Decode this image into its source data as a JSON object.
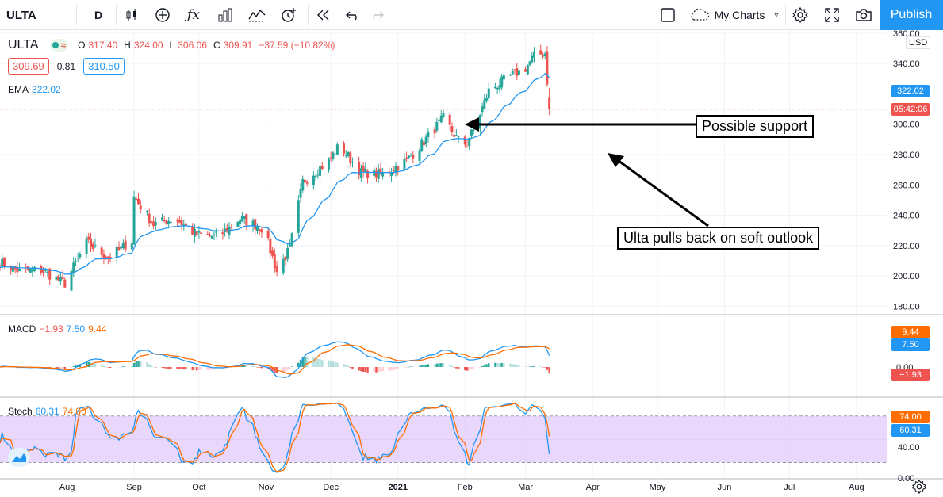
{
  "toolbar": {
    "symbol": "ULTA",
    "interval": "D",
    "my_charts": "My Charts",
    "publish": "Publish",
    "icons": [
      "search-icon",
      "candles-icon",
      "add-indicator-icon",
      "fx-icon",
      "bar-chart-icon",
      "compare-icon",
      "alert-icon",
      "replay-icon",
      "undo-icon",
      "redo-icon",
      "layout-icon",
      "cloud-icon",
      "gear-icon",
      "fullscreen-icon",
      "camera-icon"
    ]
  },
  "legend": {
    "symbol": "ULTA",
    "open_label": "O",
    "open": "317.40",
    "high_label": "H",
    "high": "324.00",
    "low_label": "L",
    "low": "306.06",
    "close_label": "C",
    "close": "309.91",
    "change": "−37.59 (−10.82%)",
    "bid": "309.69",
    "spread": "0.81",
    "ask": "310.50",
    "ema_label": "EMA",
    "ema_value": "322.02"
  },
  "price_axis": {
    "currency": "USD",
    "ticks": [
      "360.00",
      "340.00",
      "320.00",
      "300.00",
      "280.00",
      "260.00",
      "240.00",
      "220.00",
      "200.00",
      "180.00"
    ],
    "ema_badge": "322.02",
    "countdown_badge": "05:42:06"
  },
  "macd": {
    "label": "MACD",
    "hist": "−1.93",
    "macd": "7.50",
    "signal": "9.44",
    "ticks": [
      "0.00"
    ],
    "badges": [
      "9.44",
      "7.50",
      "−1.93"
    ]
  },
  "stoch": {
    "label": "Stoch",
    "k": "60.31",
    "d": "74.00",
    "ticks": [
      "40.00",
      "0.00"
    ],
    "badges": [
      "74.00",
      "60.31"
    ]
  },
  "time_axis": [
    "Aug",
    "Sep",
    "Oct",
    "Nov",
    "Dec",
    "2021",
    "Feb",
    "Mar",
    "Apr",
    "May",
    "Jun",
    "Jul",
    "Aug"
  ],
  "annotations": {
    "support": "Possible support",
    "pullback": "Ulta pulls back on soft outlook"
  },
  "colors": {
    "up": "#26a69a",
    "down": "#ef5350",
    "ema": "#2196f3",
    "macd": "#2196f3",
    "signal": "#ff6d00",
    "stoch_band": "#e1c6fb",
    "accent": "#2196f3"
  },
  "chart_data": {
    "type": "candlestick",
    "x_axis": {
      "start": "2020-07-01",
      "end": "2021-08-15"
    },
    "y_axis": {
      "range": [
        175,
        362
      ],
      "ticks": [
        180,
        200,
        220,
        240,
        260,
        280,
        300,
        320,
        340,
        360
      ]
    },
    "close_waypoints": [
      [
        "2020-07-01",
        209
      ],
      [
        "2020-07-10",
        203
      ],
      [
        "2020-07-20",
        204
      ],
      [
        "2020-07-31",
        195
      ],
      [
        "2020-08-10",
        222
      ],
      [
        "2020-08-20",
        212
      ],
      [
        "2020-08-31",
        223
      ],
      [
        "2020-09-01",
        252
      ],
      [
        "2020-09-10",
        234
      ],
      [
        "2020-09-20",
        238
      ],
      [
        "2020-09-30",
        227
      ],
      [
        "2020-10-10",
        226
      ],
      [
        "2020-10-20",
        238
      ],
      [
        "2020-10-31",
        231
      ],
      [
        "2020-11-06",
        203
      ],
      [
        "2020-11-12",
        218
      ],
      [
        "2020-11-18",
        262
      ],
      [
        "2020-11-30",
        276
      ],
      [
        "2020-12-05",
        286
      ],
      [
        "2020-12-15",
        268
      ],
      [
        "2020-12-25",
        267
      ],
      [
        "2021-01-05",
        276
      ],
      [
        "2021-01-15",
        292
      ],
      [
        "2021-01-22",
        304
      ],
      [
        "2021-01-31",
        285
      ],
      [
        "2021-02-05",
        296
      ],
      [
        "2021-02-12",
        322
      ],
      [
        "2021-02-20",
        330
      ],
      [
        "2021-03-01",
        337
      ],
      [
        "2021-03-05",
        345
      ],
      [
        "2021-03-10",
        347
      ],
      [
        "2021-03-12",
        310
      ]
    ],
    "ema_last": 322.02,
    "last": {
      "open": 317.4,
      "high": 324.0,
      "low": 306.06,
      "close": 309.91
    }
  }
}
